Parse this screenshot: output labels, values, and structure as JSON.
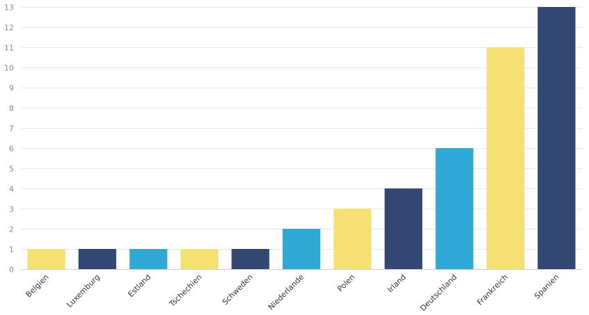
{
  "chart_data": {
    "type": "bar",
    "title": "",
    "xlabel": "",
    "ylabel": "",
    "categories": [
      "Belgien",
      "Luxemburg",
      "Estland",
      "Tschechien",
      "Schweden",
      "Niederlande",
      "Polen",
      "Irland",
      "Deutschland",
      "Frankreich",
      "Spanien"
    ],
    "values": [
      1,
      1,
      1,
      1,
      1,
      2,
      3,
      4,
      6,
      11,
      13
    ],
    "bar_colors": [
      "#f5e173",
      "#324872",
      "#31a9d6",
      "#f5e173",
      "#324872",
      "#31a9d6",
      "#f5e173",
      "#324872",
      "#31a9d6",
      "#f5e173",
      "#324872"
    ],
    "ylim": [
      0,
      13
    ],
    "yticks": [
      0,
      1,
      2,
      3,
      4,
      5,
      6,
      7,
      8,
      9,
      10,
      11,
      12,
      13
    ],
    "grid": true,
    "legend": "none"
  }
}
